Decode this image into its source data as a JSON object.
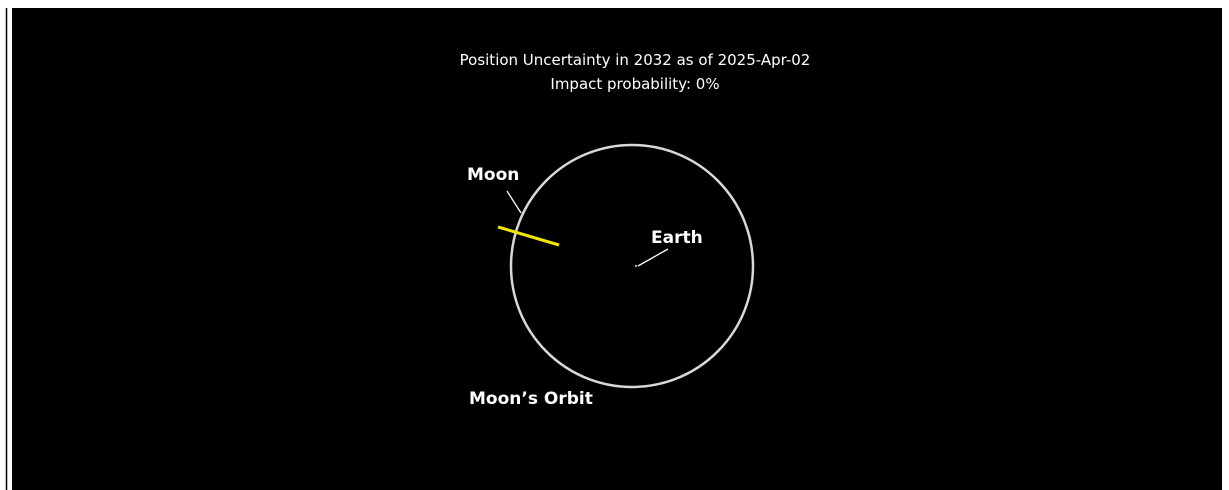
{
  "header": {
    "title": "Position Uncertainty in 2032 as of 2025-Apr-02",
    "subtitle": "Impact probability: 0%"
  },
  "labels": {
    "moon": "Moon",
    "earth": "Earth",
    "orbit": "Moon’s Orbit"
  }
}
